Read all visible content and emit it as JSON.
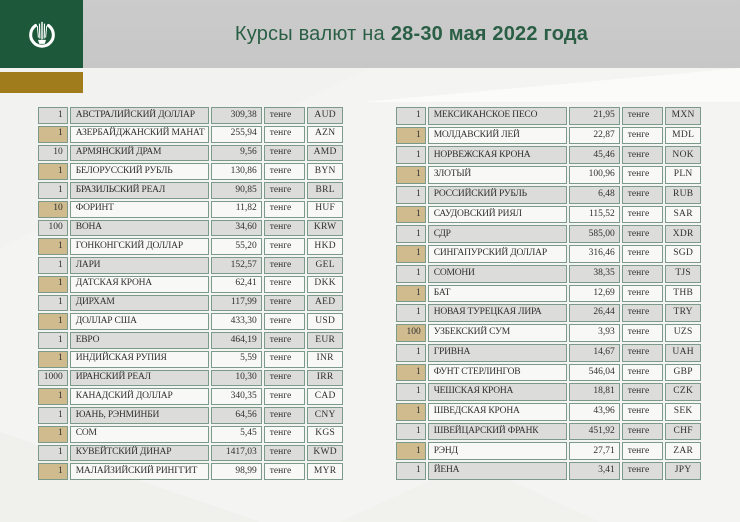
{
  "header": {
    "title_regular": "Курсы валют на",
    "title_bold": "28-30 мая 2022 года",
    "logo": "national-bank-kazakhstan-emblem"
  },
  "unit_label": "тенге",
  "colors": {
    "logo_green": "#1c5839",
    "gold": "#a07c1d",
    "title_green": "#2b5f45",
    "header_gray": "#c9c9c9",
    "table_border": "#7c9a89",
    "row_gray": "#dcdcda",
    "row_white": "#f8f8f6",
    "qty_tan": "#cfbb8e"
  },
  "tables": {
    "left": {
      "rows": [
        {
          "qty": "1",
          "name": "АВСТРАЛИЙСКИЙ ДОЛЛАР",
          "rate": "309,38",
          "code": "AUD"
        },
        {
          "qty": "1",
          "name": "АЗЕРБАЙДЖАНСКИЙ МАНАТ",
          "rate": "255,94",
          "code": "AZN"
        },
        {
          "qty": "10",
          "name": "АРМЯНСКИЙ ДРАМ",
          "rate": "9,56",
          "code": "AMD"
        },
        {
          "qty": "1",
          "name": "БЕЛОРУССКИЙ РУБЛЬ",
          "rate": "130,86",
          "code": "BYN"
        },
        {
          "qty": "1",
          "name": "БРАЗИЛЬСКИЙ РЕАЛ",
          "rate": "90,85",
          "code": "BRL"
        },
        {
          "qty": "10",
          "name": "ФОРИНТ",
          "rate": "11,82",
          "code": "HUF"
        },
        {
          "qty": "100",
          "name": "ВОНА",
          "rate": "34,60",
          "code": "KRW"
        },
        {
          "qty": "1",
          "name": "ГОНКОНГСКИЙ ДОЛЛАР",
          "rate": "55,20",
          "code": "HKD"
        },
        {
          "qty": "1",
          "name": "ЛАРИ",
          "rate": "152,57",
          "code": "GEL"
        },
        {
          "qty": "1",
          "name": "ДАТСКАЯ КРОНА",
          "rate": "62,41",
          "code": "DKK"
        },
        {
          "qty": "1",
          "name": "ДИРХАМ",
          "rate": "117,99",
          "code": "AED"
        },
        {
          "qty": "1",
          "name": "ДОЛЛАР США",
          "rate": "433,30",
          "code": "USD"
        },
        {
          "qty": "1",
          "name": "ЕВРО",
          "rate": "464,19",
          "code": "EUR"
        },
        {
          "qty": "1",
          "name": "ИНДИЙСКАЯ РУПИЯ",
          "rate": "5,59",
          "code": "INR"
        },
        {
          "qty": "1000",
          "name": "ИРАНСКИЙ РЕАЛ",
          "rate": "10,30",
          "code": "IRR"
        },
        {
          "qty": "1",
          "name": "КАНАДСКИЙ ДОЛЛАР",
          "rate": "340,35",
          "code": "CAD"
        },
        {
          "qty": "1",
          "name": "ЮАНЬ, РЭНМИНБИ",
          "rate": "64,56",
          "code": "CNY"
        },
        {
          "qty": "1",
          "name": "СОМ",
          "rate": "5,45",
          "code": "KGS"
        },
        {
          "qty": "1",
          "name": "КУВЕЙТСКИЙ ДИНАР",
          "rate": "1417,03",
          "code": "KWD"
        },
        {
          "qty": "1",
          "name": "МАЛАЙЗИЙСКИЙ РИНГГИТ",
          "rate": "98,99",
          "code": "MYR"
        }
      ]
    },
    "right": {
      "rows": [
        {
          "qty": "1",
          "name": "МЕКСИКАНСКОЕ ПЕСО",
          "rate": "21,95",
          "code": "MXN"
        },
        {
          "qty": "1",
          "name": "МОЛДАВСКИЙ ЛЕЙ",
          "rate": "22,87",
          "code": "MDL"
        },
        {
          "qty": "1",
          "name": "НОРВЕЖСКАЯ КРОНА",
          "rate": "45,46",
          "code": "NOK"
        },
        {
          "qty": "1",
          "name": "ЗЛОТЫЙ",
          "rate": "100,96",
          "code": "PLN"
        },
        {
          "qty": "1",
          "name": "РОССИЙСКИЙ РУБЛЬ",
          "rate": "6,48",
          "code": "RUB"
        },
        {
          "qty": "1",
          "name": "САУДОВСКИЙ РИЯЛ",
          "rate": "115,52",
          "code": "SAR"
        },
        {
          "qty": "1",
          "name": "СДР",
          "rate": "585,00",
          "code": "XDR"
        },
        {
          "qty": "1",
          "name": "СИНГАПУРСКИЙ ДОЛЛАР",
          "rate": "316,46",
          "code": "SGD"
        },
        {
          "qty": "1",
          "name": "СОМОНИ",
          "rate": "38,35",
          "code": "TJS"
        },
        {
          "qty": "1",
          "name": "БАТ",
          "rate": "12,69",
          "code": "THB"
        },
        {
          "qty": "1",
          "name": "НОВАЯ ТУРЕЦКАЯ ЛИРА",
          "rate": "26,44",
          "code": "TRY"
        },
        {
          "qty": "100",
          "name": "УЗБЕКСКИЙ СУМ",
          "rate": "3,93",
          "code": "UZS"
        },
        {
          "qty": "1",
          "name": "ГРИВНА",
          "rate": "14,67",
          "code": "UAH"
        },
        {
          "qty": "1",
          "name": "ФУНТ СТЕРЛИНГОВ",
          "rate": "546,04",
          "code": "GBP"
        },
        {
          "qty": "1",
          "name": "ЧЕШСКАЯ КРОНА",
          "rate": "18,81",
          "code": "CZK"
        },
        {
          "qty": "1",
          "name": "ШВЕДСКАЯ КРОНА",
          "rate": "43,96",
          "code": "SEK"
        },
        {
          "qty": "1",
          "name": "ШВЕЙЦАРСКИЙ ФРАНК",
          "rate": "451,92",
          "code": "CHF"
        },
        {
          "qty": "1",
          "name": "РЭНД",
          "rate": "27,71",
          "code": "ZAR"
        },
        {
          "qty": "1",
          "name": "ЙЕНА",
          "rate": "3,41",
          "code": "JPY"
        }
      ]
    }
  }
}
